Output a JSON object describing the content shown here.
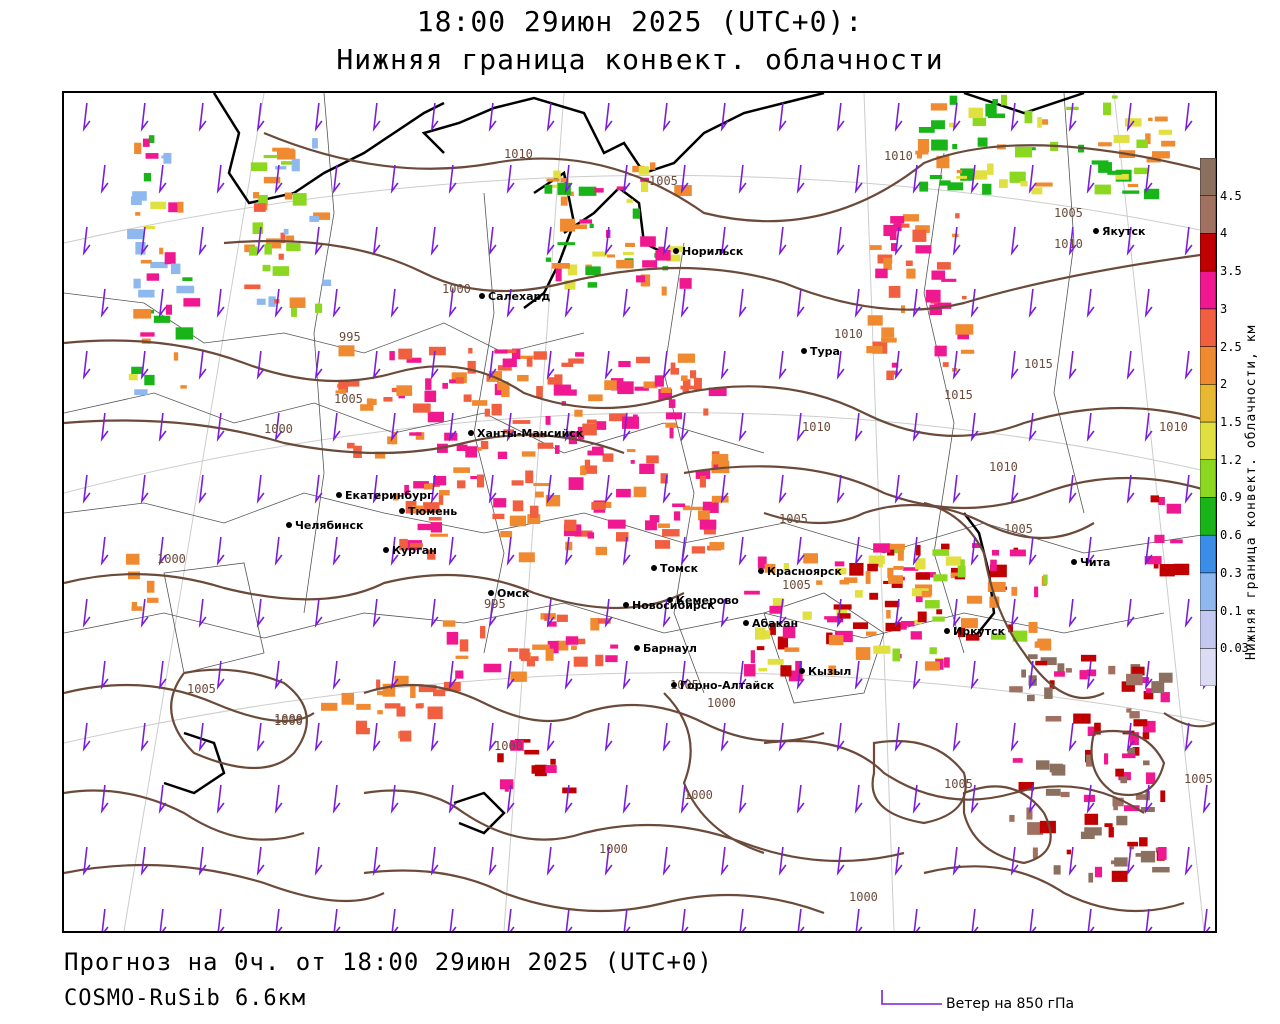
{
  "header": {
    "title_line1": "18:00 29июн 2025 (UTC+0):",
    "title_line2": "Нижняя граница конвект. облачности"
  },
  "footer": {
    "forecast": "Прогноз на 0ч. от 18:00 29июн 2025 (UTC+0)",
    "model": "COSMO-RuSib 6.6км",
    "wind_legend": "Ветер на 850 гПа"
  },
  "colorbar": {
    "title": "Нижняя граница конвект. облачности, км",
    "levels": [
      "0.03",
      "0.1",
      "0.3",
      "0.6",
      "0.9",
      "1.2",
      "1.5",
      "2",
      "2.5",
      "3",
      "3.5",
      "4",
      "4.5"
    ],
    "colors": [
      "#dcdcf5",
      "#c2c8f0",
      "#8fb8ef",
      "#3a8ee8",
      "#18b418",
      "#8cd820",
      "#e0e040",
      "#e8b830",
      "#f08a30",
      "#f06040",
      "#f01890",
      "#c00000",
      "#a07060",
      "#8b7060"
    ]
  },
  "cities": [
    {
      "name": "Норильск"
    },
    {
      "name": "Якутск"
    },
    {
      "name": "Салехард"
    },
    {
      "name": "Тура"
    },
    {
      "name": "Ханты-Мансийск"
    },
    {
      "name": "Екатеринбург"
    },
    {
      "name": "Тюмень"
    },
    {
      "name": "Челябинск"
    },
    {
      "name": "Курган"
    },
    {
      "name": "Омск"
    },
    {
      "name": "Новосибирск"
    },
    {
      "name": "Томск"
    },
    {
      "name": "Кемерово"
    },
    {
      "name": "Красноярск"
    },
    {
      "name": "Барнаул"
    },
    {
      "name": "Абакан"
    },
    {
      "name": "Кызыл"
    },
    {
      "name": "Горно-Алтайск"
    },
    {
      "name": "Иркутск"
    },
    {
      "name": "Чита"
    }
  ],
  "isobars": [
    "1010",
    "1005",
    "1010",
    "1005",
    "1010",
    "1000",
    "1005",
    "995",
    "1010",
    "1015",
    "1015",
    "1010",
    "1000",
    "1010",
    "1010",
    "1005",
    "1005",
    "1000",
    "995",
    "1005",
    "1000",
    "1005",
    "1000",
    "1000",
    "1005",
    "1000",
    "1005",
    "1000",
    "1000",
    "1005",
    "1000"
  ]
}
